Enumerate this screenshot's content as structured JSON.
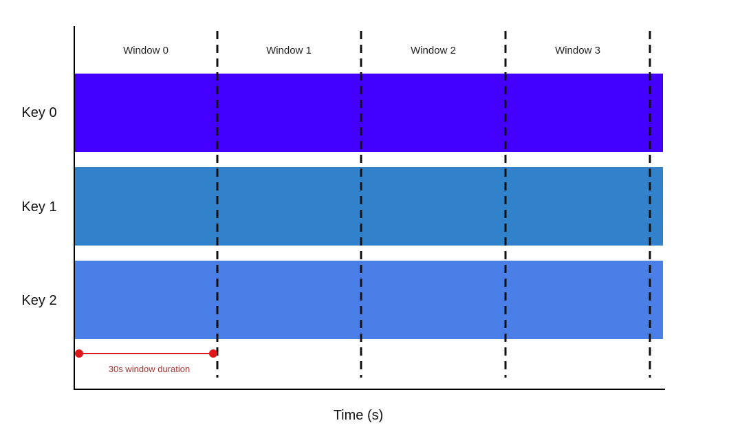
{
  "windows": [
    "Window 0",
    "Window 1",
    "Window 2",
    "Window 3"
  ],
  "keys": [
    {
      "label": "Key 0",
      "color": "#4400ff"
    },
    {
      "label": "Key 1",
      "color": "#3182ca"
    },
    {
      "label": "Key 2",
      "color": "#4a7fe8"
    }
  ],
  "duration_label": "30s window duration",
  "duration_color": "#e0161b",
  "x_axis_label": "Time (s)"
}
